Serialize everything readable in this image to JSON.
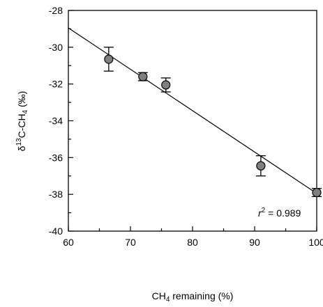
{
  "chart_data": {
    "type": "scatter",
    "xlabel": "CH4 remaining (%)",
    "ylabel": "δ13C-CH4 (‰)",
    "xlim": [
      60,
      100
    ],
    "ylim": [
      -40,
      -28
    ],
    "x_ticks": [
      60,
      70,
      80,
      90,
      100
    ],
    "y_ticks": [
      -40,
      -38,
      -36,
      -34,
      -32,
      -30,
      -28
    ],
    "grid": false,
    "points": [
      {
        "x": 66.5,
        "y": -30.65,
        "err": 0.65
      },
      {
        "x": 72.0,
        "y": -31.6,
        "err": 0.22
      },
      {
        "x": 75.7,
        "y": -32.05,
        "err": 0.38
      },
      {
        "x": 91.0,
        "y": -36.45,
        "err": 0.55
      },
      {
        "x": 100.0,
        "y": -37.9,
        "err": 0.22
      }
    ],
    "fit_line": {
      "x": [
        60,
        100
      ],
      "y": [
        -28.95,
        -37.95
      ]
    },
    "annotation": "r2 = 0.989",
    "marker_color": "#7f7f7f"
  }
}
